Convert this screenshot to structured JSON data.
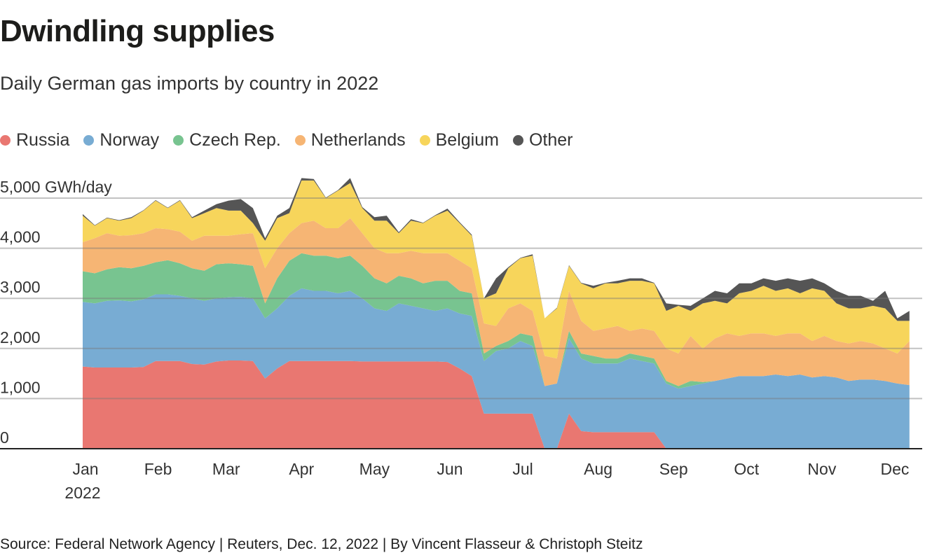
{
  "header": {
    "title": "Dwindling supplies",
    "subtitle": "Daily German gas imports by country in 2022"
  },
  "legend": [
    {
      "label": "Russia",
      "color": "#e97771"
    },
    {
      "label": "Norway",
      "color": "#78acd3"
    },
    {
      "label": "Czech Rep.",
      "color": "#78c490"
    },
    {
      "label": "Netherlands",
      "color": "#f6b574"
    },
    {
      "label": "Belgium",
      "color": "#f7d55b"
    },
    {
      "label": "Other",
      "color": "#555555"
    }
  ],
  "footer": {
    "source": "Source: Federal Network Agency | Reuters, Dec. 12, 2022 | By Vincent Flasseur & Christoph Steitz"
  },
  "chart_data": {
    "type": "area",
    "stacked": true,
    "title": "Dwindling supplies",
    "subtitle": "Daily German gas imports by country in 2022",
    "xlabel": "",
    "ylabel": "GWh/day",
    "ylim": [
      0,
      5000
    ],
    "grid": true,
    "legend_position": "top-left",
    "y_ticks": [
      {
        "value": 0,
        "label": "0"
      },
      {
        "value": 1000,
        "label": "1,000"
      },
      {
        "value": 2000,
        "label": "2,000"
      },
      {
        "value": 3000,
        "label": "3,000"
      },
      {
        "value": 4000,
        "label": "4,000"
      },
      {
        "value": 5000,
        "label": "5,000 GWh/day"
      }
    ],
    "x_ticks": [
      {
        "day": 0,
        "label": "Jan",
        "sublabel": "2022"
      },
      {
        "day": 31,
        "label": "Feb"
      },
      {
        "day": 59,
        "label": "Mar"
      },
      {
        "day": 90,
        "label": "Apr"
      },
      {
        "day": 120,
        "label": "May"
      },
      {
        "day": 151,
        "label": "Jun"
      },
      {
        "day": 181,
        "label": "Jul"
      },
      {
        "day": 212,
        "label": "Aug"
      },
      {
        "day": 243,
        "label": "Sep"
      },
      {
        "day": 273,
        "label": "Oct"
      },
      {
        "day": 304,
        "label": "Nov"
      },
      {
        "day": 334,
        "label": "Dec"
      }
    ],
    "x_days": [
      0,
      5,
      10,
      15,
      20,
      25,
      30,
      35,
      40,
      45,
      50,
      55,
      60,
      65,
      70,
      75,
      80,
      85,
      90,
      95,
      100,
      105,
      110,
      115,
      120,
      125,
      130,
      135,
      140,
      145,
      150,
      155,
      160,
      165,
      170,
      175,
      180,
      185,
      190,
      195,
      200,
      205,
      210,
      215,
      220,
      225,
      230,
      235,
      240,
      245,
      250,
      255,
      260,
      265,
      270,
      275,
      280,
      285,
      290,
      295,
      300,
      305,
      310,
      315,
      320,
      325,
      330,
      335,
      340
    ],
    "series": [
      {
        "name": "Russia",
        "color": "#e97771",
        "values": [
          1640,
          1620,
          1620,
          1620,
          1620,
          1630,
          1750,
          1750,
          1750,
          1690,
          1680,
          1740,
          1760,
          1760,
          1750,
          1400,
          1600,
          1750,
          1750,
          1750,
          1750,
          1750,
          1750,
          1740,
          1740,
          1740,
          1740,
          1740,
          1740,
          1740,
          1730,
          1600,
          1450,
          700,
          700,
          700,
          700,
          700,
          0,
          0,
          700,
          350,
          330,
          330,
          330,
          330,
          330,
          330,
          0,
          0,
          0,
          0,
          0,
          0,
          0,
          0,
          0,
          0,
          0,
          0,
          0,
          0,
          0,
          0,
          0,
          0,
          0,
          0,
          0
        ]
      },
      {
        "name": "Norway",
        "color": "#78acd3",
        "values": [
          1290,
          1280,
          1330,
          1340,
          1320,
          1350,
          1330,
          1330,
          1300,
          1310,
          1270,
          1260,
          1260,
          1270,
          1250,
          1200,
          1200,
          1300,
          1450,
          1400,
          1400,
          1350,
          1400,
          1260,
          1060,
          1010,
          1160,
          1110,
          1060,
          1010,
          1070,
          1100,
          1200,
          1050,
          1250,
          1300,
          1450,
          1350,
          1250,
          1300,
          1500,
          1450,
          1370,
          1370,
          1370,
          1470,
          1420,
          1370,
          1300,
          1200,
          1250,
          1300,
          1350,
          1400,
          1450,
          1450,
          1450,
          1480,
          1450,
          1480,
          1420,
          1450,
          1420,
          1350,
          1380,
          1380,
          1350,
          1300,
          1270
        ]
      },
      {
        "name": "Czech Rep.",
        "color": "#78c490",
        "values": [
          610,
          600,
          630,
          660,
          660,
          670,
          640,
          680,
          650,
          600,
          600,
          680,
          680,
          650,
          650,
          300,
          600,
          700,
          700,
          700,
          700,
          700,
          700,
          650,
          600,
          550,
          550,
          550,
          500,
          600,
          550,
          450,
          450,
          150,
          100,
          150,
          150,
          200,
          0,
          0,
          150,
          100,
          150,
          100,
          100,
          100,
          100,
          100,
          50,
          50,
          100,
          30,
          0,
          0,
          0,
          0,
          0,
          0,
          0,
          0,
          0,
          0,
          0,
          0,
          0,
          0,
          0,
          0,
          0
        ]
      },
      {
        "name": "Netherlands",
        "color": "#f6b574",
        "values": [
          580,
          700,
          720,
          630,
          660,
          650,
          680,
          620,
          630,
          550,
          700,
          570,
          550,
          600,
          650,
          700,
          600,
          550,
          600,
          700,
          550,
          600,
          750,
          650,
          600,
          600,
          450,
          550,
          600,
          550,
          550,
          600,
          500,
          600,
          400,
          650,
          600,
          500,
          600,
          500,
          800,
          650,
          500,
          600,
          650,
          450,
          550,
          550,
          650,
          650,
          900,
          670,
          850,
          900,
          800,
          850,
          850,
          770,
          850,
          820,
          730,
          800,
          730,
          750,
          770,
          720,
          650,
          600,
          880
        ]
      },
      {
        "name": "Belgium",
        "color": "#f7d55b",
        "values": [
          530,
          250,
          300,
          300,
          340,
          450,
          550,
          420,
          620,
          450,
          450,
          550,
          500,
          470,
          200,
          550,
          600,
          400,
          850,
          800,
          600,
          750,
          700,
          500,
          550,
          650,
          400,
          600,
          600,
          750,
          850,
          750,
          650,
          500,
          650,
          800,
          900,
          1100,
          750,
          1000,
          500,
          750,
          850,
          900,
          850,
          1000,
          950,
          950,
          750,
          950,
          500,
          900,
          750,
          600,
          850,
          850,
          950,
          900,
          900,
          800,
          1050,
          900,
          750,
          700,
          650,
          750,
          800,
          650,
          400
        ]
      },
      {
        "name": "Other",
        "color": "#555555",
        "values": [
          30,
          10,
          10,
          10,
          20,
          10,
          10,
          10,
          10,
          20,
          50,
          80,
          200,
          230,
          300,
          50,
          50,
          100,
          50,
          30,
          10,
          10,
          100,
          20,
          70,
          100,
          20,
          30,
          10,
          10,
          40,
          20,
          20,
          0,
          300,
          20,
          10,
          30,
          0,
          10,
          10,
          10,
          50,
          10,
          50,
          50,
          50,
          10,
          150,
          20,
          100,
          100,
          200,
          200,
          200,
          150,
          150,
          200,
          200,
          250,
          200,
          150,
          250,
          250,
          250,
          100,
          350,
          50,
          200
        ]
      }
    ]
  }
}
